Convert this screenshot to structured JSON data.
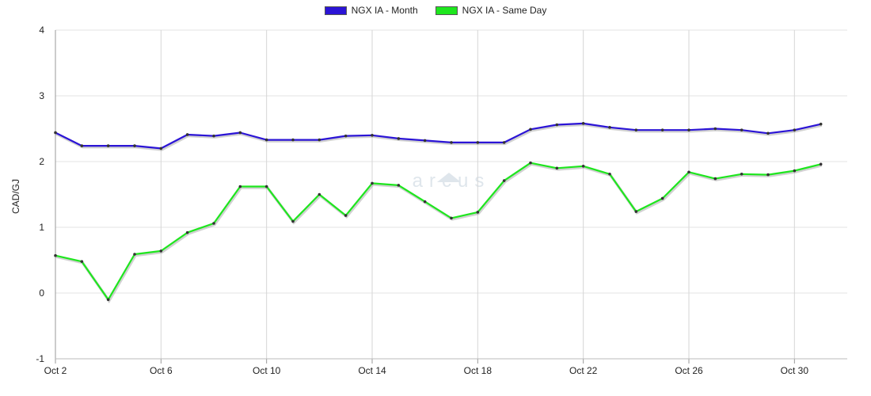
{
  "chart_data": {
    "type": "line",
    "ylabel": "CAD/GJ",
    "ylim": [
      -1,
      4
    ],
    "yticks": [
      "-1",
      "0",
      "1",
      "2",
      "3",
      "4"
    ],
    "x": [
      2,
      3,
      4,
      5,
      6,
      7,
      8,
      9,
      10,
      11,
      12,
      13,
      14,
      15,
      16,
      17,
      18,
      19,
      20,
      21,
      22,
      23,
      24,
      25,
      26,
      27,
      28,
      29,
      30,
      31
    ],
    "xticks": [
      {
        "day": 2,
        "label": "Oct 2"
      },
      {
        "day": 6,
        "label": "Oct 6"
      },
      {
        "day": 10,
        "label": "Oct 10"
      },
      {
        "day": 14,
        "label": "Oct 14"
      },
      {
        "day": 18,
        "label": "Oct 18"
      },
      {
        "day": 22,
        "label": "Oct 22"
      },
      {
        "day": 26,
        "label": "Oct 26"
      },
      {
        "day": 30,
        "label": "Oct 30"
      }
    ],
    "series": [
      {
        "name": "NGX IA - Month",
        "color": "#2b14d6",
        "values": [
          2.44,
          2.24,
          2.24,
          2.24,
          2.2,
          2.41,
          2.39,
          2.44,
          2.33,
          2.33,
          2.33,
          2.39,
          2.4,
          2.35,
          2.32,
          2.29,
          2.29,
          2.29,
          2.49,
          2.56,
          2.58,
          2.52,
          2.48,
          2.48,
          2.48,
          2.5,
          2.48,
          2.43,
          2.48,
          2.57
        ]
      },
      {
        "name": "NGX IA - Same Day",
        "color": "#1ee61e",
        "values": [
          0.57,
          0.48,
          -0.1,
          0.59,
          0.64,
          0.92,
          1.06,
          1.62,
          1.62,
          1.09,
          1.5,
          1.18,
          1.67,
          1.64,
          1.39,
          1.14,
          1.23,
          1.71,
          1.98,
          1.9,
          1.93,
          1.81,
          1.24,
          1.44,
          1.84,
          1.74,
          1.81,
          1.8,
          1.86,
          1.96
        ]
      }
    ],
    "grid": true,
    "legend_position": "top-center"
  },
  "watermark": {
    "text": "arcus",
    "color": "#dfe6ec"
  }
}
